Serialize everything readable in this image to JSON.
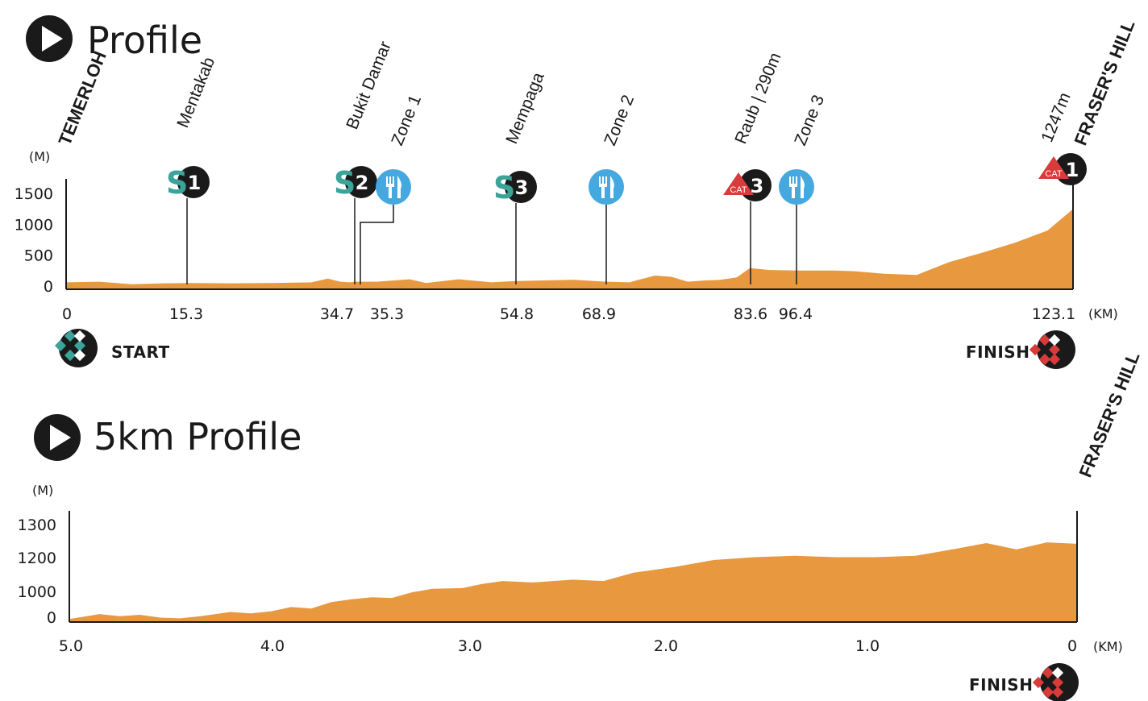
{
  "profile": {
    "title": "Profile",
    "y_unit": "(M)",
    "x_unit": "(KM)",
    "start_label": "START",
    "finish_label": "FINISH"
  },
  "profile5k": {
    "title": "5km Profile",
    "y_unit": "(M)",
    "x_unit": "(KM)",
    "finish_label": "FINISH",
    "finish_place": "FRASER'S HILL"
  },
  "colors": {
    "terrain": "#e8993f",
    "sprint": "#3aa39a",
    "feed": "#45a9e0",
    "kom": "#d93a3a",
    "badge": "#1a1a1a"
  },
  "chart_data": [
    {
      "type": "area",
      "title": "Profile",
      "ylabel": "(M)",
      "xlabel": "(KM)",
      "ylim": [
        0,
        1500
      ],
      "y_ticks": [
        0,
        500,
        1000,
        1500
      ],
      "x_ticks": [
        "0",
        "15.3",
        "34.7",
        "35.3",
        "54.8",
        "68.9",
        "83.6",
        "96.4",
        "123.1"
      ],
      "x": [
        0,
        4,
        8,
        12,
        15.3,
        20,
        25,
        30,
        32,
        33.5,
        34.7,
        35.3,
        38,
        42,
        44,
        48,
        52,
        54.8,
        58,
        62,
        66,
        68.9,
        70,
        72,
        74,
        76,
        78,
        80,
        82,
        83.6,
        86,
        90,
        94,
        96.4,
        100,
        104,
        108,
        112,
        116,
        120,
        123.1
      ],
      "values": [
        60,
        70,
        30,
        45,
        50,
        45,
        50,
        60,
        120,
        70,
        60,
        70,
        70,
        110,
        50,
        110,
        60,
        80,
        90,
        100,
        70,
        60,
        100,
        170,
        150,
        70,
        90,
        100,
        140,
        290,
        260,
        250,
        250,
        240,
        200,
        180,
        390,
        540,
        700,
        900,
        1247
      ],
      "points": [
        {
          "km": 15.3,
          "name": "Mentakab",
          "marker": "S1"
        },
        {
          "km": 34.7,
          "name": "Bukit Damar",
          "marker": "S2"
        },
        {
          "km": 35.3,
          "name": "Zone 1",
          "marker": "feed"
        },
        {
          "km": 54.8,
          "name": "Mempaga",
          "marker": "S3"
        },
        {
          "km": 68.9,
          "name": "Zone 2",
          "marker": "feed"
        },
        {
          "km": 83.6,
          "name": "Raub | 290m",
          "marker": "CAT 3"
        },
        {
          "km": 96.4,
          "name": "Zone 3",
          "marker": "feed"
        },
        {
          "km": 123.1,
          "name": "1247m",
          "marker": "CAT 1"
        }
      ],
      "start_place": "TEMERLOH",
      "finish_place": "FRASER'S HILL"
    },
    {
      "type": "area",
      "title": "5km Profile",
      "ylabel": "(M)",
      "xlabel": "(KM)",
      "y_ticks": [
        0,
        1000,
        1200,
        1300
      ],
      "x_ticks": [
        "5.0",
        "4.0",
        "3.0",
        "2.0",
        "1.0",
        "0"
      ],
      "x": [
        5.0,
        4.85,
        4.75,
        4.65,
        4.55,
        4.45,
        4.35,
        4.2,
        4.1,
        4.0,
        3.9,
        3.8,
        3.7,
        3.6,
        3.5,
        3.4,
        3.3,
        3.2,
        3.05,
        2.95,
        2.85,
        2.7,
        2.5,
        2.35,
        2.2,
        2.0,
        1.8,
        1.6,
        1.4,
        1.2,
        1.0,
        0.8,
        0.6,
        0.45,
        0.3,
        0.15,
        0.0
      ],
      "values": [
        20,
        90,
        60,
        80,
        40,
        30,
        60,
        120,
        100,
        130,
        190,
        170,
        260,
        300,
        330,
        320,
        400,
        450,
        460,
        520,
        560,
        540,
        580,
        560,
        680,
        760,
        860,
        900,
        920,
        900,
        900,
        920,
        1020,
        1100,
        1010,
        1110,
        1090
      ]
    }
  ]
}
